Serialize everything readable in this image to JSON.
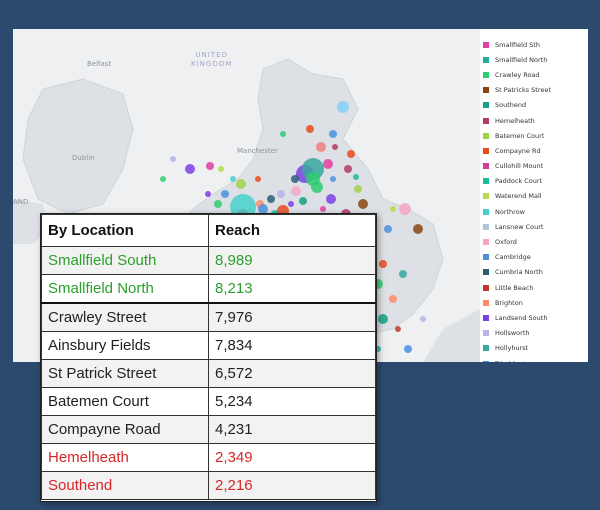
{
  "colors": {
    "page_background": "#2b4a6e",
    "good": "#2ca02c",
    "bad": "#d62728",
    "neutral": "#222222"
  },
  "map": {
    "labels": {
      "country": "UNITED\nKINGDOM",
      "belfast": "Belfast",
      "dublin": "Dublin",
      "manchester": "Manchester",
      "and": "AND"
    }
  },
  "legend": {
    "items": [
      {
        "label": "Smallfield Sth",
        "color": "#e040a0"
      },
      {
        "label": "Smallfield North",
        "color": "#20b0a0"
      },
      {
        "label": "Crawley Road",
        "color": "#2ecc71"
      },
      {
        "label": "St Patricks Street",
        "color": "#8b4513"
      },
      {
        "label": "Southend",
        "color": "#16a085"
      },
      {
        "label": "Hemelheath",
        "color": "#b03a6a"
      },
      {
        "label": "Batemen Court",
        "color": "#a2d149"
      },
      {
        "label": "Compayne Rd",
        "color": "#e74c1c"
      },
      {
        "label": "Cullohill Mount",
        "color": "#d0409a"
      },
      {
        "label": "Paddock Court",
        "color": "#1abc9c"
      },
      {
        "label": "Waterend Mall",
        "color": "#b8d94a"
      },
      {
        "label": "Northrow",
        "color": "#48d1cc"
      },
      {
        "label": "Lansnew Court",
        "color": "#b0c4de"
      },
      {
        "label": "Oxford",
        "color": "#f4a6c8"
      },
      {
        "label": "Cambridge",
        "color": "#4a90d9"
      },
      {
        "label": "Cumbria North",
        "color": "#2c5f7a"
      },
      {
        "label": "Little Beach",
        "color": "#c0392b"
      },
      {
        "label": "Brighton",
        "color": "#ff8c69"
      },
      {
        "label": "Landsend South",
        "color": "#7b3fe4"
      },
      {
        "label": "Hollsworth",
        "color": "#b7b4e8"
      },
      {
        "label": "Hollyhurst",
        "color": "#3aa7a0"
      },
      {
        "label": "Trimbleston",
        "color": "#4a90e2"
      }
    ]
  },
  "table": {
    "headers": {
      "location": "By Location",
      "reach": "Reach"
    },
    "rows": [
      {
        "location": "Smallfield South",
        "reach": "8,989",
        "status": "good"
      },
      {
        "location": "Smallfield North",
        "reach": "8,213",
        "status": "good"
      },
      {
        "location": "Crawley Street",
        "reach": "7,976",
        "status": "neutral"
      },
      {
        "location": "Ainsbury Fields",
        "reach": "7,834",
        "status": "neutral"
      },
      {
        "location": "St Patrick Street",
        "reach": "6,572",
        "status": "neutral"
      },
      {
        "location": "Batemen Court",
        "reach": "5,234",
        "status": "neutral"
      },
      {
        "location": "Compayne Road",
        "reach": "4,231",
        "status": "neutral"
      },
      {
        "location": "Hemelheath",
        "reach": "2,349",
        "status": "bad"
      },
      {
        "location": "Southend",
        "reach": "2,216",
        "status": "bad"
      }
    ]
  }
}
